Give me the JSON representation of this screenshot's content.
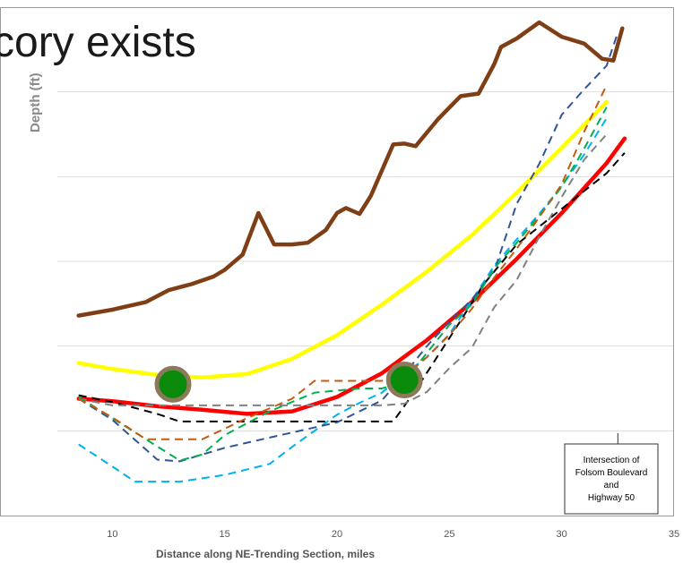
{
  "slide_title": "cory exists",
  "chart_data": {
    "type": "line",
    "xlabel": "Distance along NE-Trending Section, miles",
    "ylabel": "Depth (ft)",
    "x_ticks": [
      10,
      15,
      20,
      25,
      30,
      35
    ],
    "xlim": [
      5,
      35
    ],
    "ylim": [
      6,
      0
    ],
    "grid": true,
    "annotation": {
      "lines": [
        "Intersection of",
        "Folsom Boulevard",
        "and",
        "Highway 50"
      ],
      "x": 32.5
    },
    "markers": [
      {
        "x": 12.7,
        "y": 4.45
      },
      {
        "x": 23.0,
        "y": 4.4
      }
    ],
    "series": [
      {
        "color": "#7f3f16",
        "style": "solid",
        "width": 4.5,
        "points": [
          [
            8.5,
            3.64
          ],
          [
            10,
            3.57
          ],
          [
            11.5,
            3.48
          ],
          [
            12.5,
            3.34
          ],
          [
            13.5,
            3.27
          ],
          [
            14.5,
            3.18
          ],
          [
            15,
            3.1
          ],
          [
            15.8,
            2.92
          ],
          [
            16.5,
            2.43
          ],
          [
            17.2,
            2.8
          ],
          [
            18,
            2.8
          ],
          [
            18.7,
            2.78
          ],
          [
            19.5,
            2.63
          ],
          [
            20,
            2.43
          ],
          [
            20.4,
            2.37
          ],
          [
            21,
            2.44
          ],
          [
            21.5,
            2.23
          ],
          [
            22.5,
            1.62
          ],
          [
            23,
            1.61
          ],
          [
            23.5,
            1.64
          ],
          [
            24.5,
            1.32
          ],
          [
            25.5,
            1.05
          ],
          [
            26.3,
            1.02
          ],
          [
            27,
            0.67
          ],
          [
            27.3,
            0.47
          ],
          [
            28,
            0.37
          ],
          [
            29,
            0.18
          ],
          [
            30,
            0.35
          ],
          [
            31,
            0.43
          ],
          [
            31.8,
            0.61
          ],
          [
            32.3,
            0.63
          ],
          [
            32.7,
            0.25
          ]
        ]
      },
      {
        "color": "#ffff00",
        "style": "solid",
        "width": 4.5,
        "points": [
          [
            8.5,
            4.2
          ],
          [
            10,
            4.27
          ],
          [
            12,
            4.34
          ],
          [
            14,
            4.37
          ],
          [
            16,
            4.33
          ],
          [
            18,
            4.15
          ],
          [
            20,
            3.87
          ],
          [
            22,
            3.51
          ],
          [
            24,
            3.12
          ],
          [
            26,
            2.69
          ],
          [
            28,
            2.19
          ],
          [
            30,
            1.66
          ],
          [
            32,
            1.12
          ]
        ]
      },
      {
        "color": "#ff0000",
        "style": "solid",
        "width": 4.5,
        "points": [
          [
            8.5,
            4.62
          ],
          [
            10,
            4.65
          ],
          [
            12,
            4.71
          ],
          [
            14,
            4.75
          ],
          [
            16,
            4.8
          ],
          [
            18,
            4.77
          ],
          [
            20,
            4.6
          ],
          [
            22,
            4.32
          ],
          [
            24,
            3.93
          ],
          [
            26,
            3.48
          ],
          [
            28,
            2.97
          ],
          [
            30,
            2.43
          ],
          [
            32,
            1.84
          ],
          [
            32.8,
            1.55
          ]
        ]
      },
      {
        "color": "#000000",
        "style": "dash",
        "width": 2,
        "points": [
          [
            8.5,
            4.58
          ],
          [
            10,
            4.66
          ],
          [
            12,
            4.8
          ],
          [
            13,
            4.89
          ],
          [
            17,
            4.89
          ],
          [
            20,
            4.89
          ],
          [
            22.5,
            4.89
          ],
          [
            23.5,
            4.52
          ],
          [
            24.5,
            4.11
          ],
          [
            25.5,
            3.7
          ],
          [
            26.5,
            3.28
          ],
          [
            28,
            2.8
          ],
          [
            30,
            2.38
          ],
          [
            32,
            1.96
          ],
          [
            32.8,
            1.72
          ]
        ]
      },
      {
        "color": "#808080",
        "style": "dash",
        "width": 2,
        "points": [
          [
            8.5,
            4.62
          ],
          [
            10,
            4.7
          ],
          [
            12,
            4.7
          ],
          [
            14,
            4.7
          ],
          [
            17,
            4.7
          ],
          [
            20,
            4.7
          ],
          [
            22,
            4.7
          ],
          [
            23,
            4.68
          ],
          [
            24,
            4.54
          ],
          [
            25,
            4.26
          ],
          [
            26,
            4.02
          ],
          [
            27,
            3.54
          ],
          [
            28,
            3.22
          ],
          [
            29,
            2.71
          ],
          [
            30,
            2.24
          ],
          [
            31,
            1.8
          ],
          [
            32,
            1.5
          ]
        ]
      },
      {
        "color": "#00b0f0",
        "style": "dash",
        "width": 2,
        "points": [
          [
            8.5,
            5.16
          ],
          [
            10,
            5.42
          ],
          [
            11,
            5.6
          ],
          [
            13,
            5.6
          ],
          [
            15,
            5.52
          ],
          [
            17,
            5.39
          ],
          [
            18,
            5.19
          ],
          [
            19,
            5.0
          ],
          [
            20,
            4.81
          ],
          [
            21,
            4.67
          ],
          [
            22,
            4.55
          ],
          [
            23,
            4.33
          ],
          [
            24,
            4.13
          ],
          [
            25,
            3.86
          ],
          [
            26,
            3.46
          ],
          [
            27,
            3.05
          ],
          [
            28,
            2.74
          ],
          [
            29,
            2.44
          ],
          [
            30,
            2.11
          ],
          [
            31,
            1.74
          ],
          [
            32,
            1.31
          ]
        ]
      },
      {
        "color": "#2f5597",
        "style": "dash",
        "width": 2,
        "points": [
          [
            8.5,
            4.62
          ],
          [
            10,
            4.87
          ],
          [
            12,
            5.34
          ],
          [
            13,
            5.36
          ],
          [
            15,
            5.2
          ],
          [
            17,
            5.08
          ],
          [
            20,
            4.9
          ],
          [
            22,
            4.64
          ],
          [
            23,
            4.33
          ],
          [
            24,
            4.0
          ],
          [
            25,
            3.71
          ],
          [
            26,
            3.45
          ],
          [
            27,
            3.11
          ],
          [
            28,
            2.32
          ],
          [
            29,
            1.85
          ],
          [
            30,
            1.27
          ],
          [
            31,
            0.97
          ],
          [
            32,
            0.69
          ],
          [
            32.5,
            0.3
          ]
        ]
      },
      {
        "color": "#00b050",
        "style": "dash",
        "width": 2,
        "points": [
          [
            8.5,
            4.6
          ],
          [
            10,
            4.85
          ],
          [
            11.5,
            5.1
          ],
          [
            13,
            5.35
          ],
          [
            14,
            5.28
          ],
          [
            15,
            5.05
          ],
          [
            17,
            4.77
          ],
          [
            19,
            4.55
          ],
          [
            21,
            4.5
          ],
          [
            22,
            4.5
          ],
          [
            23,
            4.42
          ],
          [
            24,
            4.08
          ],
          [
            25,
            3.75
          ],
          [
            26,
            3.51
          ],
          [
            27,
            3.08
          ],
          [
            28,
            2.78
          ],
          [
            29,
            2.46
          ],
          [
            30,
            2.12
          ],
          [
            31,
            1.67
          ],
          [
            32,
            1.18
          ]
        ]
      },
      {
        "color": "#c55a11",
        "style": "dash",
        "width": 2,
        "points": [
          [
            8.5,
            4.62
          ],
          [
            10,
            4.84
          ],
          [
            11.5,
            5.1
          ],
          [
            14,
            5.1
          ],
          [
            16,
            4.85
          ],
          [
            18,
            4.62
          ],
          [
            19,
            4.41
          ],
          [
            20,
            4.41
          ],
          [
            21,
            4.41
          ],
          [
            22,
            4.41
          ],
          [
            23,
            4.36
          ],
          [
            24,
            4.13
          ],
          [
            25,
            3.87
          ],
          [
            26,
            3.56
          ],
          [
            27,
            3.19
          ],
          [
            28,
            2.85
          ],
          [
            29,
            2.48
          ],
          [
            30,
            2.09
          ],
          [
            31,
            1.47
          ],
          [
            32,
            0.92
          ]
        ]
      }
    ]
  }
}
